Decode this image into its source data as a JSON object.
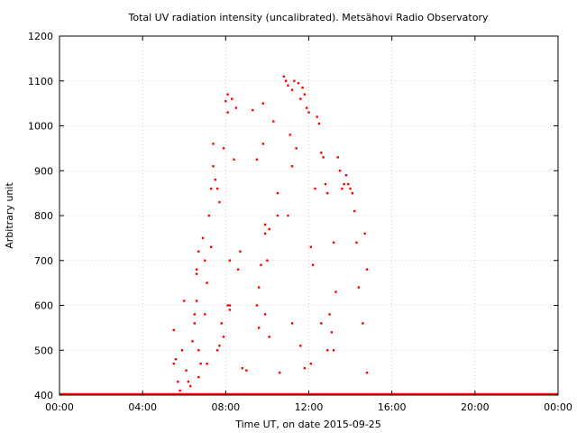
{
  "chart_data": {
    "type": "scatter",
    "title": "Total UV radiation intensity (uncalibrated). Metsähovi Radio Observatory",
    "xlabel": "Time UT, on date 2015-09-25",
    "ylabel": "Arbitrary unit",
    "xlim": [
      0,
      24
    ],
    "ylim": [
      400,
      1200
    ],
    "x_ticks": [
      0,
      4,
      8,
      12,
      16,
      20,
      24
    ],
    "x_tick_labels": [
      "00:00",
      "04:00",
      "08:00",
      "12:00",
      "16:00",
      "20:00",
      "00:00"
    ],
    "y_ticks": [
      400,
      500,
      600,
      700,
      800,
      900,
      1000,
      1100,
      1200
    ],
    "y_tick_labels": [
      "400",
      "500",
      "600",
      "700",
      "800",
      "900",
      "1000",
      "1100",
      "1200"
    ],
    "grid": true,
    "series_color": "#ff0000",
    "baseline": {
      "value": 400,
      "x_range": [
        0,
        24
      ]
    },
    "points": [
      [
        5.5,
        545
      ],
      [
        5.5,
        470
      ],
      [
        5.6,
        480
      ],
      [
        5.7,
        430
      ],
      [
        5.8,
        410
      ],
      [
        5.9,
        500
      ],
      [
        6.0,
        610
      ],
      [
        6.1,
        455
      ],
      [
        6.2,
        430
      ],
      [
        6.3,
        420
      ],
      [
        6.4,
        520
      ],
      [
        6.5,
        580
      ],
      [
        6.5,
        560
      ],
      [
        6.6,
        610
      ],
      [
        6.6,
        680
      ],
      [
        6.6,
        670
      ],
      [
        6.7,
        720
      ],
      [
        6.7,
        500
      ],
      [
        6.8,
        470
      ],
      [
        6.9,
        750
      ],
      [
        7.0,
        700
      ],
      [
        7.0,
        580
      ],
      [
        7.1,
        650
      ],
      [
        7.1,
        470
      ],
      [
        7.2,
        800
      ],
      [
        7.3,
        860
      ],
      [
        7.3,
        730
      ],
      [
        7.4,
        910
      ],
      [
        7.4,
        960
      ],
      [
        7.5,
        880
      ],
      [
        7.6,
        860
      ],
      [
        7.7,
        830
      ],
      [
        7.7,
        510
      ],
      [
        7.8,
        560
      ],
      [
        7.9,
        950
      ],
      [
        8.0,
        1055
      ],
      [
        8.1,
        1070
      ],
      [
        8.1,
        1030
      ],
      [
        8.2,
        700
      ],
      [
        8.2,
        600
      ],
      [
        8.3,
        1060
      ],
      [
        8.4,
        925
      ],
      [
        8.5,
        1040
      ],
      [
        8.6,
        680
      ],
      [
        8.7,
        720
      ],
      [
        8.8,
        460
      ],
      [
        9.0,
        455
      ],
      [
        9.3,
        1035
      ],
      [
        9.5,
        925
      ],
      [
        9.6,
        550
      ],
      [
        9.7,
        690
      ],
      [
        9.8,
        1050
      ],
      [
        9.8,
        960
      ],
      [
        9.9,
        760
      ],
      [
        9.9,
        780
      ],
      [
        10.0,
        700
      ],
      [
        10.1,
        770
      ],
      [
        10.3,
        1010
      ],
      [
        10.5,
        850
      ],
      [
        10.6,
        450
      ],
      [
        10.8,
        1110
      ],
      [
        10.9,
        1100
      ],
      [
        11.0,
        1090
      ],
      [
        11.1,
        980
      ],
      [
        11.2,
        1080
      ],
      [
        11.2,
        910
      ],
      [
        11.3,
        1100
      ],
      [
        11.4,
        950
      ],
      [
        11.5,
        1095
      ],
      [
        11.6,
        1060
      ],
      [
        11.7,
        1085
      ],
      [
        11.8,
        1070
      ],
      [
        11.9,
        1040
      ],
      [
        12.0,
        1030
      ],
      [
        12.1,
        730
      ],
      [
        12.2,
        690
      ],
      [
        12.3,
        860
      ],
      [
        12.4,
        1020
      ],
      [
        12.5,
        1005
      ],
      [
        12.6,
        940
      ],
      [
        12.7,
        930
      ],
      [
        12.8,
        870
      ],
      [
        12.9,
        850
      ],
      [
        13.0,
        580
      ],
      [
        13.1,
        540
      ],
      [
        13.2,
        740
      ],
      [
        13.3,
        630
      ],
      [
        13.4,
        930
      ],
      [
        13.5,
        900
      ],
      [
        13.6,
        860
      ],
      [
        13.7,
        870
      ],
      [
        13.8,
        890
      ],
      [
        13.9,
        870
      ],
      [
        14.0,
        860
      ],
      [
        14.1,
        850
      ],
      [
        14.2,
        810
      ],
      [
        14.3,
        740
      ],
      [
        14.4,
        640
      ],
      [
        14.6,
        560
      ],
      [
        14.7,
        760
      ],
      [
        14.8,
        680
      ],
      [
        14.8,
        450
      ],
      [
        13.2,
        500
      ],
      [
        12.9,
        500
      ],
      [
        10.1,
        530
      ],
      [
        9.6,
        640
      ],
      [
        9.9,
        580
      ],
      [
        8.1,
        600
      ],
      [
        8.2,
        590
      ],
      [
        7.6,
        500
      ],
      [
        11.0,
        800
      ],
      [
        11.2,
        560
      ],
      [
        11.6,
        510
      ],
      [
        12.1,
        470
      ],
      [
        12.6,
        560
      ],
      [
        7.9,
        530
      ],
      [
        6.7,
        440
      ],
      [
        9.5,
        600
      ],
      [
        10.5,
        800
      ],
      [
        11.8,
        460
      ]
    ]
  }
}
